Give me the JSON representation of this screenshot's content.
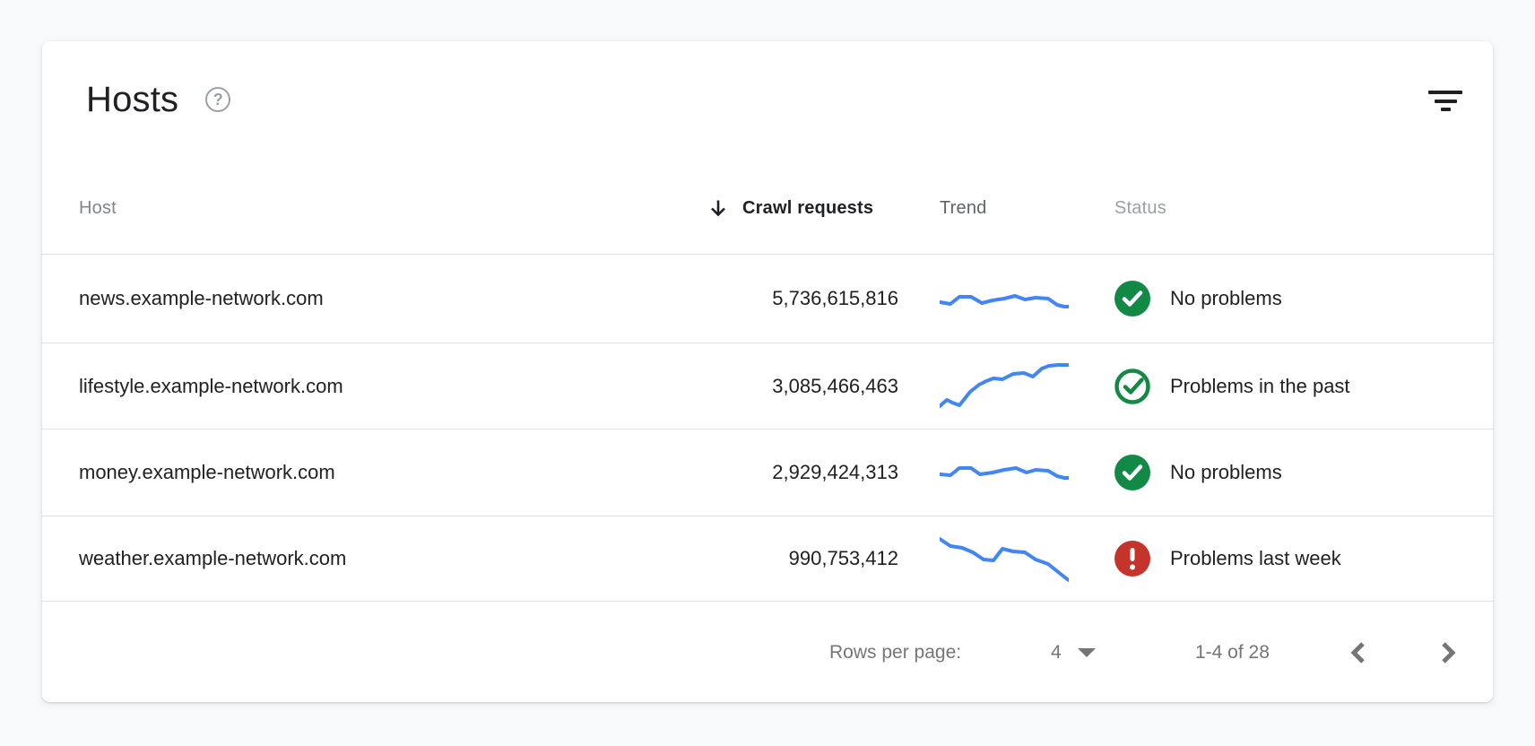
{
  "page": {
    "background_color": "#f8f9fa"
  },
  "card": {
    "title": "Hosts",
    "help_glyph": "?"
  },
  "table": {
    "columns": [
      {
        "id": "host",
        "label": "Host",
        "sorted": false
      },
      {
        "id": "crawl_requests",
        "label": "Crawl requests",
        "sorted": true,
        "sort_direction": "descending"
      },
      {
        "id": "trend",
        "label": "Trend",
        "sorted": false
      },
      {
        "id": "status",
        "label": "Status",
        "sorted": false
      }
    ],
    "rows": [
      {
        "host": "news.example-network.com",
        "crawl_requests": "5,736,615,816",
        "trend": {
          "type": "line",
          "points": [
            [
              0,
              32
            ],
            [
              12,
              34
            ],
            [
              22,
              26
            ],
            [
              35,
              26
            ],
            [
              47,
              33
            ],
            [
              59,
              30
            ],
            [
              72,
              28
            ],
            [
              84,
              25
            ],
            [
              95,
              29
            ],
            [
              107,
              27
            ],
            [
              121,
              28
            ],
            [
              131,
              35
            ],
            [
              139,
              37
            ],
            [
              144,
              37
            ]
          ]
        },
        "status": {
          "kind": "no-problems",
          "label": "No problems"
        }
      },
      {
        "host": "lifestyle.example-network.com",
        "crawl_requests": "3,085,466,463",
        "trend": {
          "type": "line",
          "points": [
            [
              0,
              50
            ],
            [
              8,
              43
            ],
            [
              14,
              46
            ],
            [
              22,
              49
            ],
            [
              34,
              34
            ],
            [
              44,
              26
            ],
            [
              52,
              22
            ],
            [
              60,
              19
            ],
            [
              70,
              20
            ],
            [
              82,
              14
            ],
            [
              94,
              13
            ],
            [
              104,
              17
            ],
            [
              114,
              8
            ],
            [
              122,
              5
            ],
            [
              132,
              4
            ],
            [
              144,
              4
            ]
          ]
        },
        "status": {
          "kind": "problems-past",
          "label": "Problems in the past"
        }
      },
      {
        "host": "money.example-network.com",
        "crawl_requests": "2,929,424,313",
        "trend": {
          "type": "line",
          "points": [
            [
              0,
              30
            ],
            [
              12,
              31
            ],
            [
              22,
              23
            ],
            [
              35,
              23
            ],
            [
              45,
              30
            ],
            [
              59,
              28
            ],
            [
              72,
              25
            ],
            [
              85,
              23
            ],
            [
              97,
              28
            ],
            [
              107,
              25
            ],
            [
              121,
              26
            ],
            [
              131,
              32
            ],
            [
              139,
              34
            ],
            [
              144,
              34
            ]
          ]
        },
        "status": {
          "kind": "no-problems",
          "label": "No problems"
        }
      },
      {
        "host": "weather.example-network.com",
        "crawl_requests": "990,753,412",
        "trend": {
          "type": "line",
          "points": [
            [
              0,
              6
            ],
            [
              12,
              14
            ],
            [
              25,
              16
            ],
            [
              37,
              21
            ],
            [
              49,
              29
            ],
            [
              60,
              30
            ],
            [
              70,
              17
            ],
            [
              82,
              20
            ],
            [
              95,
              21
            ],
            [
              107,
              29
            ],
            [
              121,
              34
            ],
            [
              131,
              42
            ],
            [
              141,
              50
            ],
            [
              144,
              52
            ]
          ]
        },
        "status": {
          "kind": "problems-recent",
          "label": "Problems last week"
        }
      }
    ]
  },
  "pagination": {
    "rows_per_page_label": "Rows per page:",
    "rows_per_page_value": "4",
    "range_label": "1-4 of 28"
  },
  "colors": {
    "trend_line": "#4285f4",
    "ok_green": "#128a46",
    "error_red": "#c4342b",
    "text_primary": "#202124",
    "text_secondary": "#757575",
    "divider": "#e0e0e0"
  }
}
